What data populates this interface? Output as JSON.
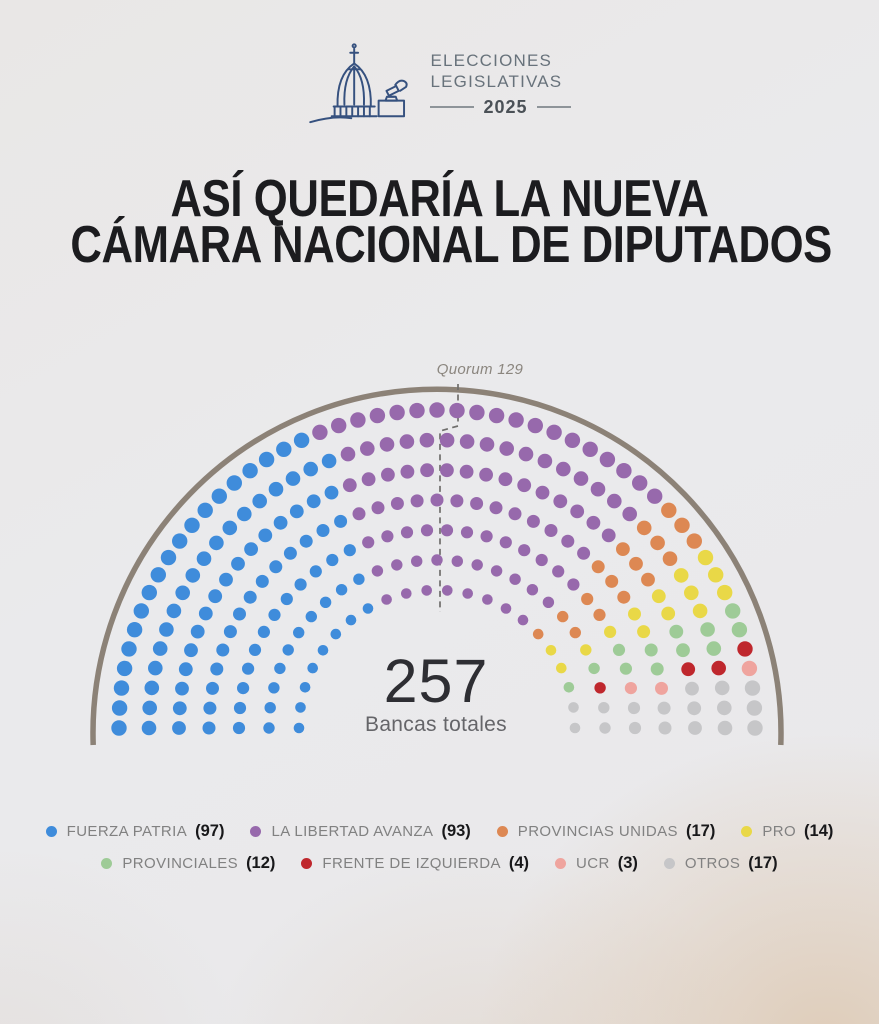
{
  "header": {
    "brand_line1": "ELECCIONES",
    "brand_line2": "LEGISLATIVAS",
    "brand_year": "2025"
  },
  "title": {
    "line1": "ASÍ QUEDARÍA LA NUEVA",
    "line2": "CÁMARA NACIONAL DE DIPUTADOS"
  },
  "chart_data": {
    "type": "parliament_hemicycle",
    "total_seats": 257,
    "total_label": "257",
    "total_sublabel": "Bancas totales",
    "quorum_seats": 129,
    "quorum_label": "Quorum 129",
    "rows": 7,
    "legend_position": "bottom",
    "outline_color": "#8c8277",
    "series": [
      {
        "name": "FUERZA PATRIA",
        "seats": 97,
        "color": "#3f8cdb"
      },
      {
        "name": "LA LIBERTAD AVANZA",
        "seats": 93,
        "color": "#9769ac"
      },
      {
        "name": "PROVINCIAS UNIDAS",
        "seats": 17,
        "color": "#dd8853"
      },
      {
        "name": "PRO",
        "seats": 14,
        "color": "#e9d847"
      },
      {
        "name": "PROVINCIALES",
        "seats": 12,
        "color": "#9ecb97"
      },
      {
        "name": "FRENTE DE IZQUIERDA",
        "seats": 4,
        "color": "#bf272d"
      },
      {
        "name": "UCR",
        "seats": 3,
        "color": "#efa49e"
      },
      {
        "name": "OTROS",
        "seats": 17,
        "color": "#c6c6c8"
      }
    ]
  }
}
